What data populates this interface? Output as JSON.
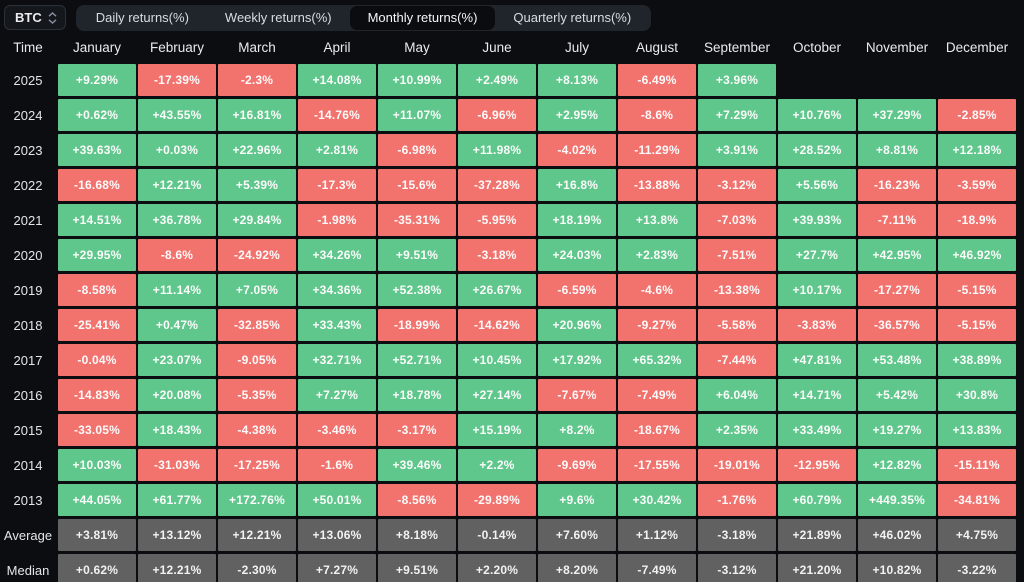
{
  "asset_selector": {
    "value": "BTC"
  },
  "tabs": {
    "items": [
      {
        "label": "Daily returns(%)",
        "active": false
      },
      {
        "label": "Weekly returns(%)",
        "active": false
      },
      {
        "label": "Monthly returns(%)",
        "active": true
      },
      {
        "label": "Quarterly returns(%)",
        "active": false
      }
    ]
  },
  "colors": {
    "background": "#0b0d10",
    "positive": "#5fc78b",
    "negative": "#f2726e",
    "summary": "#616161"
  },
  "table": {
    "time_header": "Time",
    "months": [
      "January",
      "February",
      "March",
      "April",
      "May",
      "June",
      "July",
      "August",
      "September",
      "October",
      "November",
      "December"
    ],
    "rows": [
      {
        "label": "2025",
        "summary": false,
        "values": [
          "+9.29%",
          "-17.39%",
          "-2.3%",
          "+14.08%",
          "+10.99%",
          "+2.49%",
          "+8.13%",
          "-6.49%",
          "+3.96%",
          "",
          "",
          ""
        ]
      },
      {
        "label": "2024",
        "summary": false,
        "values": [
          "+0.62%",
          "+43.55%",
          "+16.81%",
          "-14.76%",
          "+11.07%",
          "-6.96%",
          "+2.95%",
          "-8.6%",
          "+7.29%",
          "+10.76%",
          "+37.29%",
          "-2.85%"
        ]
      },
      {
        "label": "2023",
        "summary": false,
        "values": [
          "+39.63%",
          "+0.03%",
          "+22.96%",
          "+2.81%",
          "-6.98%",
          "+11.98%",
          "-4.02%",
          "-11.29%",
          "+3.91%",
          "+28.52%",
          "+8.81%",
          "+12.18%"
        ]
      },
      {
        "label": "2022",
        "summary": false,
        "values": [
          "-16.68%",
          "+12.21%",
          "+5.39%",
          "-17.3%",
          "-15.6%",
          "-37.28%",
          "+16.8%",
          "-13.88%",
          "-3.12%",
          "+5.56%",
          "-16.23%",
          "-3.59%"
        ]
      },
      {
        "label": "2021",
        "summary": false,
        "values": [
          "+14.51%",
          "+36.78%",
          "+29.84%",
          "-1.98%",
          "-35.31%",
          "-5.95%",
          "+18.19%",
          "+13.8%",
          "-7.03%",
          "+39.93%",
          "-7.11%",
          "-18.9%"
        ]
      },
      {
        "label": "2020",
        "summary": false,
        "values": [
          "+29.95%",
          "-8.6%",
          "-24.92%",
          "+34.26%",
          "+9.51%",
          "-3.18%",
          "+24.03%",
          "+2.83%",
          "-7.51%",
          "+27.7%",
          "+42.95%",
          "+46.92%"
        ]
      },
      {
        "label": "2019",
        "summary": false,
        "values": [
          "-8.58%",
          "+11.14%",
          "+7.05%",
          "+34.36%",
          "+52.38%",
          "+26.67%",
          "-6.59%",
          "-4.6%",
          "-13.38%",
          "+10.17%",
          "-17.27%",
          "-5.15%"
        ]
      },
      {
        "label": "2018",
        "summary": false,
        "values": [
          "-25.41%",
          "+0.47%",
          "-32.85%",
          "+33.43%",
          "-18.99%",
          "-14.62%",
          "+20.96%",
          "-9.27%",
          "-5.58%",
          "-3.83%",
          "-36.57%",
          "-5.15%"
        ]
      },
      {
        "label": "2017",
        "summary": false,
        "values": [
          "-0.04%",
          "+23.07%",
          "-9.05%",
          "+32.71%",
          "+52.71%",
          "+10.45%",
          "+17.92%",
          "+65.32%",
          "-7.44%",
          "+47.81%",
          "+53.48%",
          "+38.89%"
        ]
      },
      {
        "label": "2016",
        "summary": false,
        "values": [
          "-14.83%",
          "+20.08%",
          "-5.35%",
          "+7.27%",
          "+18.78%",
          "+27.14%",
          "-7.67%",
          "-7.49%",
          "+6.04%",
          "+14.71%",
          "+5.42%",
          "+30.8%"
        ]
      },
      {
        "label": "2015",
        "summary": false,
        "values": [
          "-33.05%",
          "+18.43%",
          "-4.38%",
          "-3.46%",
          "-3.17%",
          "+15.19%",
          "+8.2%",
          "-18.67%",
          "+2.35%",
          "+33.49%",
          "+19.27%",
          "+13.83%"
        ]
      },
      {
        "label": "2014",
        "summary": false,
        "values": [
          "+10.03%",
          "-31.03%",
          "-17.25%",
          "-1.6%",
          "+39.46%",
          "+2.2%",
          "-9.69%",
          "-17.55%",
          "-19.01%",
          "-12.95%",
          "+12.82%",
          "-15.11%"
        ]
      },
      {
        "label": "2013",
        "summary": false,
        "values": [
          "+44.05%",
          "+61.77%",
          "+172.76%",
          "+50.01%",
          "-8.56%",
          "-29.89%",
          "+9.6%",
          "+30.42%",
          "-1.76%",
          "+60.79%",
          "+449.35%",
          "-34.81%"
        ]
      },
      {
        "label": "Average",
        "summary": true,
        "values": [
          "+3.81%",
          "+13.12%",
          "+12.21%",
          "+13.06%",
          "+8.18%",
          "-0.14%",
          "+7.60%",
          "+1.12%",
          "-3.18%",
          "+21.89%",
          "+46.02%",
          "+4.75%"
        ]
      },
      {
        "label": "Median",
        "summary": true,
        "values": [
          "+0.62%",
          "+12.21%",
          "-2.30%",
          "+7.27%",
          "+9.51%",
          "+2.20%",
          "+8.20%",
          "-7.49%",
          "-3.12%",
          "+21.20%",
          "+10.82%",
          "-3.22%"
        ]
      }
    ]
  }
}
